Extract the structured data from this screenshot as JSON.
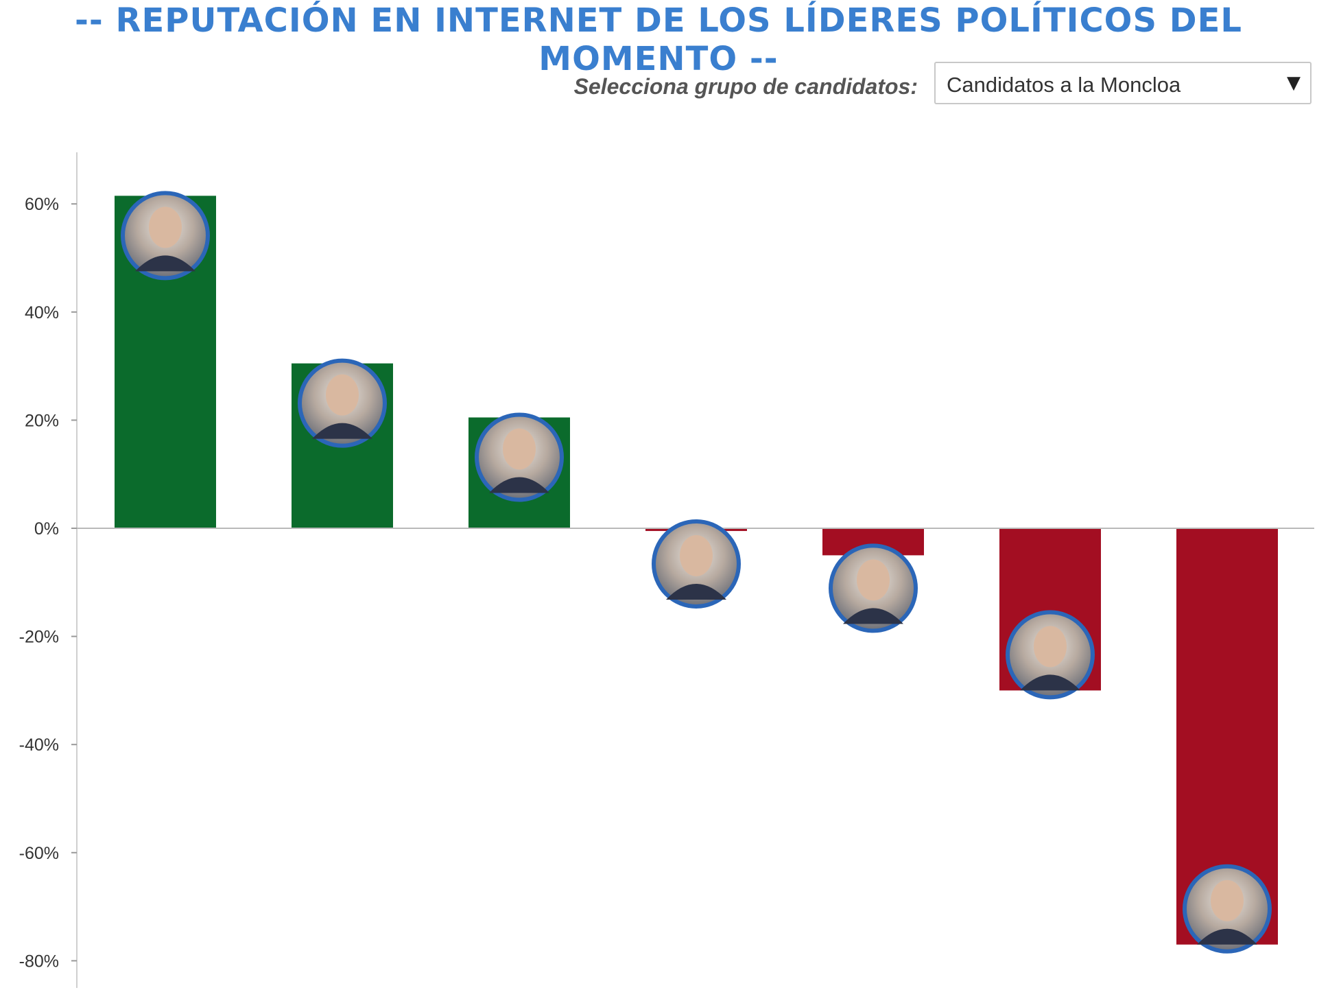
{
  "header": {
    "title": "-- REPUTACIÓN EN INTERNET DE LOS LÍDERES POLÍTICOS DEL MOMENTO --"
  },
  "selector": {
    "label": "Selecciona grupo de candidatos:",
    "value": "Candidatos a la Moncloa",
    "arrow_icon": "caret-down-icon"
  },
  "colors": {
    "title": "#3a7fcf",
    "positive": "#0b6b2c",
    "negative": "#a30e22",
    "photo_border": "#2b66b8",
    "axis": "#cfcfcf"
  },
  "chart_data": {
    "type": "bar",
    "title": "",
    "xlabel": "",
    "ylabel": "",
    "ylim": [
      -80,
      70
    ],
    "y_ticks": [
      60,
      40,
      20,
      0,
      -20,
      -40,
      -60,
      -80
    ],
    "y_tick_labels": [
      "60%",
      "40%",
      "20%",
      "0%",
      "-20%",
      "-40%",
      "-60%",
      "-80%"
    ],
    "values": [
      61.5,
      30.5,
      20.5,
      -0.5,
      -5,
      -30,
      -77
    ],
    "markers": [
      "candidate-photo-icon",
      "candidate-photo-icon",
      "candidate-photo-icon",
      "candidate-photo-icon",
      "candidate-photo-icon",
      "candidate-photo-icon",
      "candidate-photo-icon"
    ],
    "grid": false
  }
}
